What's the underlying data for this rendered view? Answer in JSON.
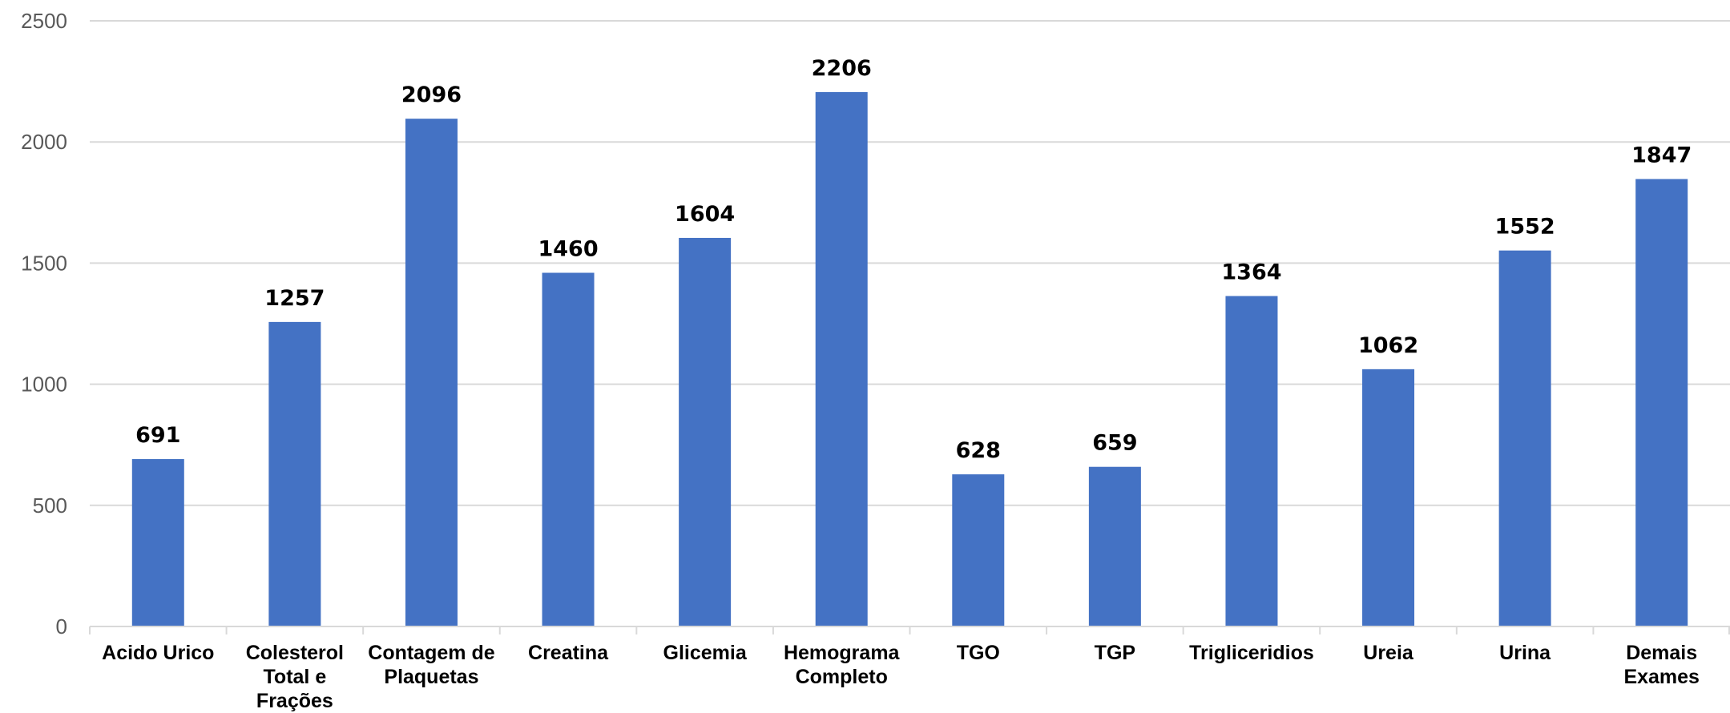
{
  "chart_data": {
    "type": "bar",
    "title": "",
    "xlabel": "",
    "ylabel": "",
    "ylim": [
      0,
      2500
    ],
    "yticks": [
      0,
      500,
      1000,
      1500,
      2000,
      2500
    ],
    "grid": true,
    "legend": "none",
    "bar_color": "#4472C4",
    "grid_color": "#D9D9D9",
    "categories": [
      "Acido Urico",
      "Colesterol Total e Frações",
      "Contagem de Plaquetas",
      "Creatina",
      "Glicemia",
      "Hemograma Completo",
      "TGO",
      "TGP",
      "Trigliceridios",
      "Ureia",
      "Urina",
      "Demais Exames"
    ],
    "category_lines": [
      [
        "Acido Urico"
      ],
      [
        "Colesterol",
        "Total e",
        "Frações"
      ],
      [
        "Contagem de",
        "Plaquetas"
      ],
      [
        "Creatina"
      ],
      [
        "Glicemia"
      ],
      [
        "Hemograma",
        "Completo"
      ],
      [
        "TGO"
      ],
      [
        "TGP"
      ],
      [
        "Trigliceridios"
      ],
      [
        "Ureia"
      ],
      [
        "Urina"
      ],
      [
        "Demais",
        "Exames"
      ]
    ],
    "values": [
      691,
      1257,
      2096,
      1460,
      1604,
      2206,
      628,
      659,
      1364,
      1062,
      1552,
      1847
    ]
  }
}
